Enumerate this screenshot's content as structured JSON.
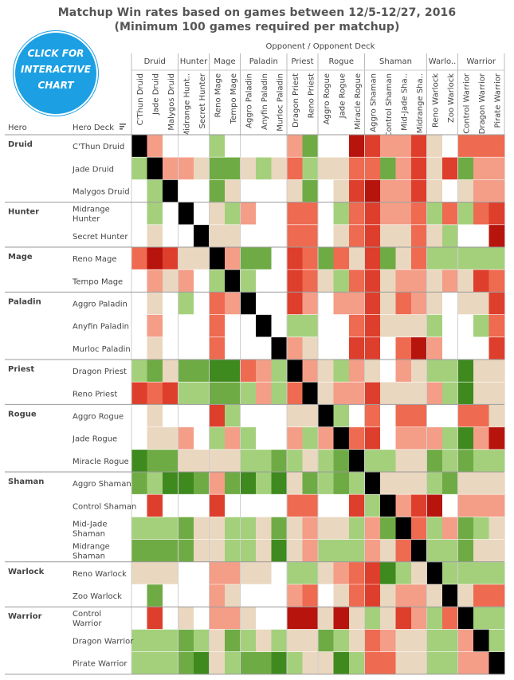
{
  "title_line1": "Matchup Win rates based on games between 12/5-12/27, 2016",
  "title_line2": "(Minimum 100 games required per matchup)",
  "badge": {
    "line1": "CLICK FOR",
    "line2": "INTERACTIVE",
    "line3": "CHART",
    "color": "#1ca0e3"
  },
  "axis_caption": "Opponent  /  Opponent Deck",
  "row_headers": {
    "hero": "Hero",
    "deck": "Hero Deck"
  },
  "colors": {
    "-3": "#3f8a1e",
    "-2": "#6fab44",
    "-1": "#a4d07c",
    "0": "#ffffff",
    "1": "#ead7bf",
    "2": "#f49d87",
    "3": "#ee6a50",
    "4": "#de3e2c",
    "5": "#b7140d",
    "x": "#000000"
  },
  "chart_data": {
    "type": "heatmap",
    "title": "Matchup Win rates based on games between 12/5-12/27, 2016",
    "subtitle": "(Minimum 100 games required per matchup)",
    "xlabel": "Opponent  /  Opponent Deck",
    "ylabel": "Hero / Hero Deck",
    "value_scale": "shade levels: negative = green, positive = red, 0 = white (no data), x = mirror (black)",
    "groups": [
      {
        "hero": "Druid",
        "decks": [
          "C'Thun Druid",
          "Jade Druid",
          "Malygos Druid"
        ]
      },
      {
        "hero": "Hunter",
        "decks": [
          "Midrange Hunter",
          "Secret Hunter"
        ]
      },
      {
        "hero": "Mage",
        "decks": [
          "Reno Mage",
          "Tempo Mage"
        ]
      },
      {
        "hero": "Paladin",
        "decks": [
          "Aggro Paladin",
          "Anyfin Paladin",
          "Murloc Paladin"
        ]
      },
      {
        "hero": "Priest",
        "decks": [
          "Dragon Priest",
          "Reno Priest"
        ]
      },
      {
        "hero": "Rogue",
        "decks": [
          "Aggro Rogue",
          "Jade Rogue",
          "Miracle Rogue"
        ]
      },
      {
        "hero": "Shaman",
        "decks": [
          "Aggro Shaman",
          "Control Shaman",
          "Mid-Jade Shaman",
          "Midrange Shaman"
        ]
      },
      {
        "hero": "Warlock",
        "decks": [
          "Reno Warlock",
          "Zoo Warlock"
        ]
      },
      {
        "hero": "Warrior",
        "decks": [
          "Control Warrior",
          "Dragon Warrior",
          "Pirate Warrior"
        ]
      }
    ],
    "column_groups": [
      "Druid",
      "Hunter",
      "Mage",
      "Paladin",
      "Priest",
      "Rogue",
      "Shaman",
      "Warlo..",
      "Warrior"
    ],
    "columns": [
      "C'Thun Druid",
      "Jade Druid",
      "Malygos Druid",
      "Midrange Hunt..",
      "Secret Hunter",
      "Reno Mage",
      "Tempo Mage",
      "Aggro Paladin",
      "Anyfin Paladin",
      "Murloc Paladin",
      "Dragon Priest",
      "Reno Priest",
      "Aggro Rogue",
      "Jade Rogue",
      "Miracle Rogue",
      "Aggro Shaman",
      "Control Shaman",
      "Mid-Jade Sha..",
      "Midrange Sha..",
      "Reno Warlock",
      "Zoo Warlock",
      "Control Warrior",
      "Dragon Warrior",
      "Pirate Warrior"
    ],
    "rows": [
      {
        "hero": "Druid",
        "deck": "C'Thun Druid",
        "values": [
          "x",
          2,
          0,
          0,
          0,
          -1,
          0,
          0,
          0,
          0,
          2,
          -2,
          0,
          0,
          5,
          4,
          2,
          2,
          4,
          1,
          0,
          3,
          3,
          3
        ]
      },
      {
        "hero": "",
        "deck": "Jade Druid",
        "values": [
          -1,
          "x",
          2,
          2,
          1,
          -2,
          -2,
          1,
          -1,
          1,
          3,
          -1,
          1,
          1,
          3,
          3,
          -2,
          2,
          4,
          1,
          4,
          -2,
          2,
          2
        ]
      },
      {
        "hero": "",
        "deck": "Malygos Druid",
        "values": [
          0,
          -1,
          "x",
          0,
          0,
          -2,
          1,
          0,
          0,
          0,
          1,
          -2,
          0,
          1,
          4,
          5,
          2,
          2,
          4,
          1,
          0,
          1,
          2,
          2
        ]
      },
      {
        "hero": "Hunter",
        "deck": "Midrange Hunter",
        "values": [
          0,
          -1,
          0,
          "x",
          0,
          1,
          -1,
          2,
          0,
          0,
          3,
          3,
          0,
          -1,
          3,
          4,
          2,
          2,
          3,
          -1,
          3,
          -1,
          3,
          4
        ]
      },
      {
        "hero": "",
        "deck": "Secret Hunter",
        "values": [
          0,
          1,
          0,
          0,
          "x",
          1,
          1,
          0,
          0,
          0,
          3,
          3,
          0,
          1,
          3,
          4,
          1,
          1,
          3,
          1,
          -1,
          0,
          0,
          5
        ]
      },
      {
        "hero": "Mage",
        "deck": "Reno Mage",
        "values": [
          3,
          5,
          4,
          1,
          1,
          "x",
          2,
          -2,
          -2,
          0,
          4,
          3,
          -2,
          3,
          1,
          4,
          -2,
          1,
          3,
          -1,
          -1,
          -1,
          -1,
          -1
        ]
      },
      {
        "hero": "",
        "deck": "Tempo Mage",
        "values": [
          0,
          2,
          1,
          2,
          0,
          -1,
          "x",
          -1,
          0,
          0,
          4,
          3,
          1,
          -1,
          3,
          4,
          1,
          2,
          2,
          1,
          2,
          1,
          4,
          3
        ]
      },
      {
        "hero": "Paladin",
        "deck": "Aggro Paladin",
        "values": [
          0,
          1,
          0,
          -1,
          0,
          3,
          2,
          "x",
          0,
          0,
          4,
          2,
          0,
          2,
          2,
          4,
          1,
          3,
          2,
          1,
          0,
          1,
          1,
          4
        ]
      },
      {
        "hero": "",
        "deck": "Anyfin Paladin",
        "values": [
          0,
          2,
          0,
          0,
          0,
          3,
          0,
          0,
          "x",
          0,
          -1,
          -1,
          0,
          0,
          3,
          4,
          1,
          1,
          1,
          -1,
          0,
          0,
          -1,
          3
        ]
      },
      {
        "hero": "",
        "deck": "Murloc Paladin",
        "values": [
          0,
          1,
          0,
          0,
          0,
          3,
          0,
          0,
          0,
          "x",
          2,
          1,
          0,
          0,
          4,
          4,
          0,
          3,
          5,
          2,
          0,
          0,
          0,
          4
        ]
      },
      {
        "hero": "Priest",
        "deck": "Dragon Priest",
        "values": [
          -1,
          -2,
          1,
          -2,
          -2,
          -3,
          -3,
          3,
          2,
          -1,
          "x",
          2,
          1,
          -1,
          2,
          1,
          0,
          2,
          1,
          -1,
          -1,
          -3,
          1,
          1
        ]
      },
      {
        "hero": "",
        "deck": "Reno Priest",
        "values": [
          4,
          3,
          4,
          -1,
          -1,
          -2,
          -2,
          -1,
          2,
          -1,
          3,
          "x",
          1,
          2,
          2,
          4,
          1,
          1,
          1,
          2,
          -1,
          -3,
          1,
          1
        ]
      },
      {
        "hero": "Rogue",
        "deck": "Aggro Rogue",
        "values": [
          0,
          1,
          0,
          0,
          0,
          4,
          -1,
          0,
          0,
          0,
          1,
          1,
          "x",
          -1,
          0,
          3,
          0,
          3,
          3,
          0,
          0,
          3,
          3,
          1
        ]
      },
      {
        "hero": "",
        "deck": "Jade Rogue",
        "values": [
          0,
          1,
          1,
          2,
          0,
          -1,
          2,
          -1,
          0,
          0,
          2,
          -1,
          2,
          "x",
          3,
          4,
          0,
          2,
          2,
          2,
          -1,
          -3,
          2,
          5
        ]
      },
      {
        "hero": "",
        "deck": "Miracle Rogue",
        "values": [
          -3,
          -2,
          -2,
          1,
          1,
          1,
          1,
          -1,
          -1,
          -2,
          -1,
          1,
          -1,
          -2,
          "x",
          -1,
          -1,
          1,
          1,
          -2,
          -1,
          -2,
          -1,
          -1
        ]
      },
      {
        "hero": "Shaman",
        "deck": "Aggro Shaman",
        "values": [
          -2,
          -1,
          -3,
          -3,
          -2,
          2,
          -2,
          -3,
          -1,
          -3,
          1,
          -2,
          -1,
          -2,
          -1,
          "x",
          1,
          1,
          1,
          -1,
          -2,
          1,
          1,
          1
        ]
      },
      {
        "hero": "",
        "deck": "Control Shaman",
        "values": [
          0,
          4,
          0,
          0,
          0,
          4,
          0,
          0,
          0,
          0,
          3,
          3,
          0,
          0,
          4,
          -1,
          "x",
          2,
          4,
          5,
          0,
          2,
          2,
          2
        ]
      },
      {
        "hero": "",
        "deck": "Mid-Jade Shaman",
        "values": [
          -1,
          -1,
          -1,
          -2,
          1,
          1,
          -1,
          -1,
          1,
          -2,
          1,
          2,
          1,
          1,
          -1,
          2,
          -2,
          "x",
          3,
          -1,
          2,
          -2,
          -1,
          1
        ]
      },
      {
        "hero": "",
        "deck": "Midrange Shaman",
        "values": [
          -2,
          -2,
          -2,
          -2,
          1,
          1,
          -1,
          -1,
          1,
          -3,
          1,
          2,
          -1,
          -1,
          -1,
          2,
          1,
          3,
          "x",
          -1,
          -1,
          -2,
          1,
          1
        ]
      },
      {
        "hero": "Warlock",
        "deck": "Reno Warlock",
        "values": [
          1,
          1,
          1,
          0,
          0,
          2,
          2,
          1,
          1,
          0,
          -1,
          -1,
          1,
          2,
          3,
          4,
          -3,
          -1,
          1,
          "x",
          -1,
          -1,
          -1,
          -1
        ]
      },
      {
        "hero": "",
        "deck": "Zoo Warlock",
        "values": [
          0,
          -2,
          0,
          0,
          0,
          2,
          1,
          0,
          0,
          0,
          2,
          3,
          0,
          1,
          3,
          4,
          1,
          2,
          2,
          1,
          "x",
          1,
          3,
          3
        ]
      },
      {
        "hero": "Warrior",
        "deck": "Control Warrior",
        "values": [
          0,
          4,
          0,
          1,
          0,
          2,
          2,
          1,
          0,
          0,
          5,
          5,
          1,
          5,
          1,
          -1,
          1,
          4,
          2,
          -1,
          3,
          "x",
          -1,
          -1
        ]
      },
      {
        "hero": "",
        "deck": "Dragon Warrior",
        "values": [
          -1,
          -1,
          -1,
          -2,
          -1,
          1,
          -2,
          -1,
          1,
          -1,
          1,
          1,
          -2,
          -1,
          1,
          3,
          2,
          1,
          1,
          -1,
          -1,
          2,
          "x",
          -1
        ]
      },
      {
        "hero": "",
        "deck": "Pirate Warrior",
        "values": [
          -1,
          -1,
          -1,
          -2,
          -3,
          1,
          -1,
          -2,
          -2,
          -3,
          -1,
          1,
          1,
          -3,
          -1,
          3,
          3,
          1,
          1,
          -1,
          -1,
          2,
          2,
          "x"
        ]
      }
    ]
  }
}
